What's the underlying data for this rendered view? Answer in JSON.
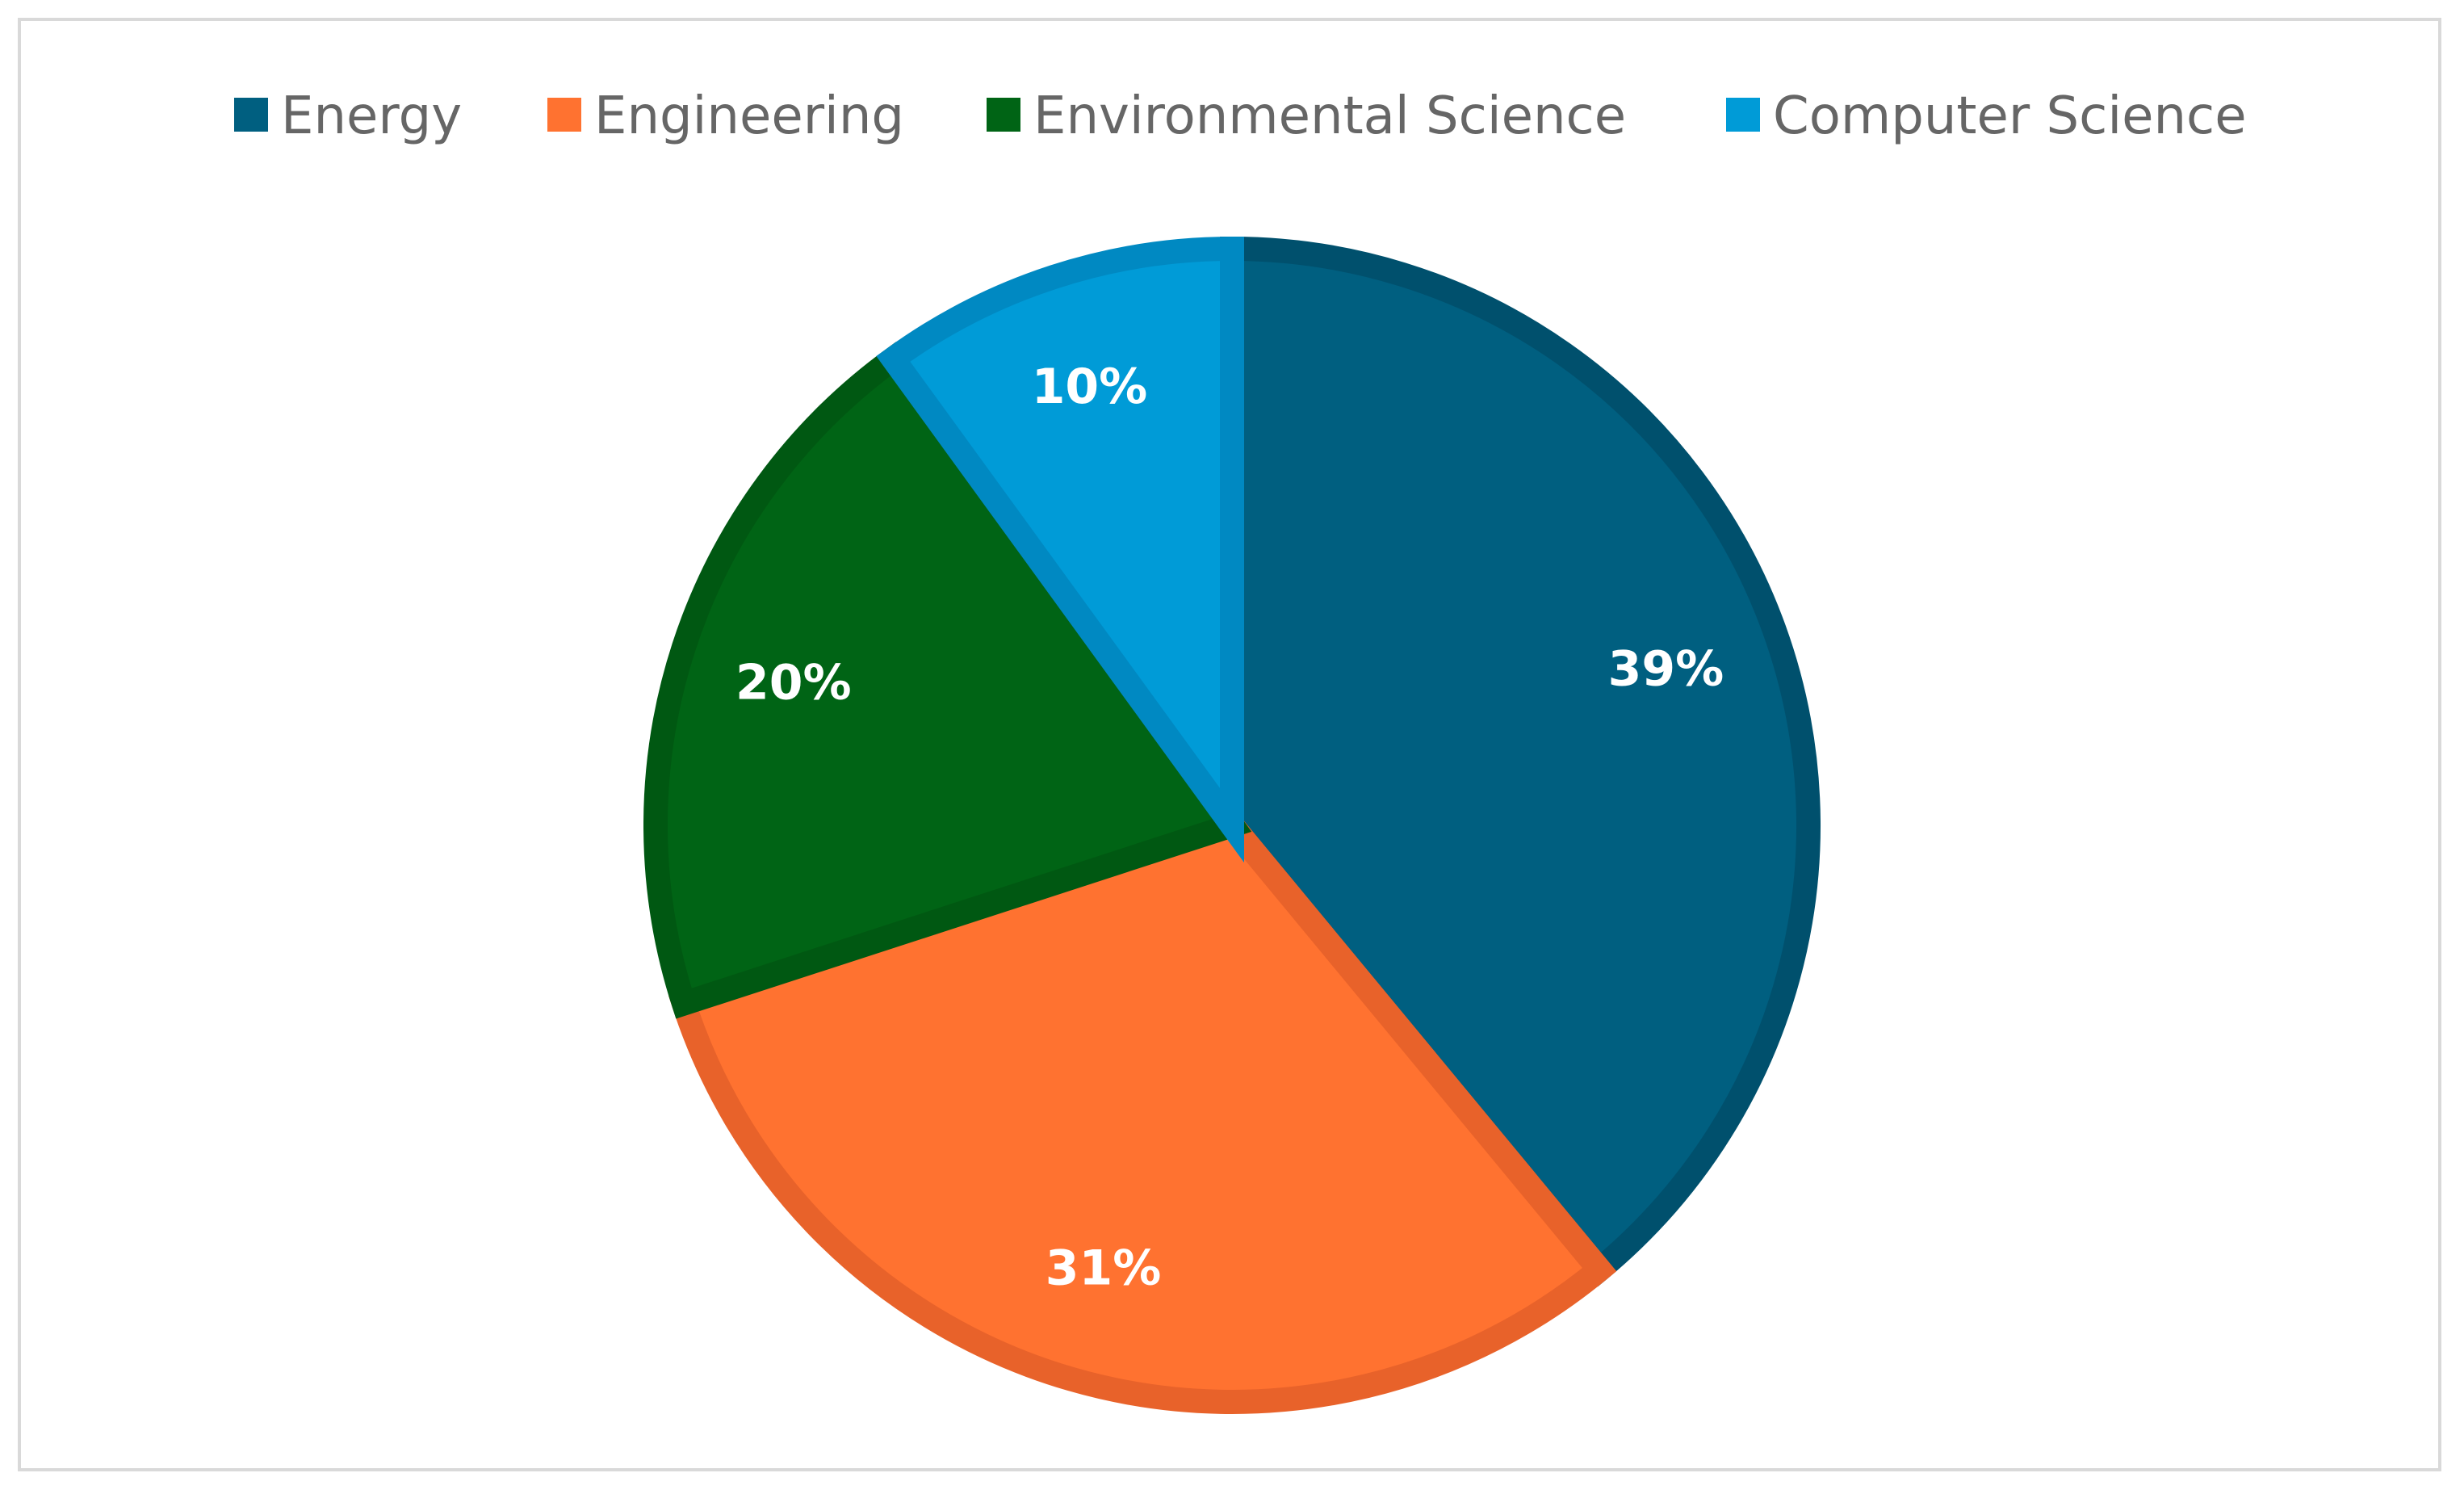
{
  "chart_data": {
    "type": "pie",
    "title": "",
    "legend_position": "top",
    "slices": [
      {
        "name": "Energy",
        "value": 39,
        "label": "39%",
        "color": "#005F80",
        "edge_color": "#00506D"
      },
      {
        "name": "Engineering",
        "value": 31,
        "label": "31%",
        "color": "#FF7230",
        "edge_color": "#E8622A"
      },
      {
        "name": "Environmental Science",
        "value": 20,
        "label": "20%",
        "color": "#006415",
        "edge_color": "#005812"
      },
      {
        "name": "Computer Science",
        "value": 10,
        "label": "10%",
        "color": "#009BD7",
        "edge_color": "#0089C2"
      }
    ]
  }
}
